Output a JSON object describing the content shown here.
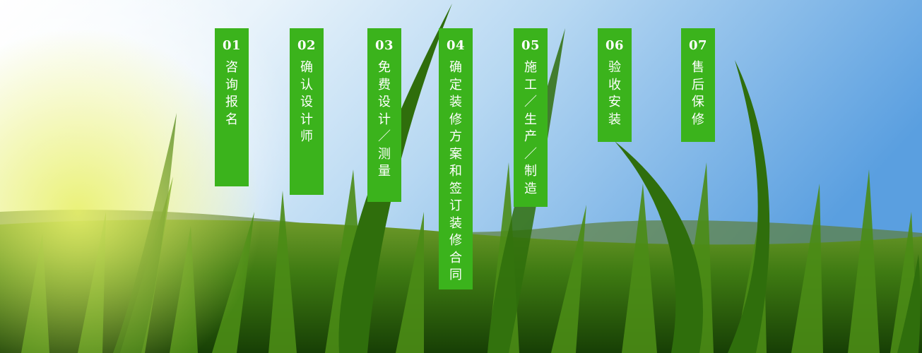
{
  "steps": [
    {
      "number": "01",
      "label": "咨询报名"
    },
    {
      "number": "02",
      "label": "确认设计师"
    },
    {
      "number": "03",
      "label": "免费设计／测量"
    },
    {
      "number": "04",
      "label": "确定装修方案和签订装修合同"
    },
    {
      "number": "05",
      "label": "施工／生产／制造"
    },
    {
      "number": "06",
      "label": "验收安装"
    },
    {
      "number": "07",
      "label": "售后保修"
    }
  ],
  "colors": {
    "step_background": "#3bb31c",
    "step_text": "#ffffff",
    "sky_top": "#5a9fe0",
    "grass": "#3e7a12"
  }
}
